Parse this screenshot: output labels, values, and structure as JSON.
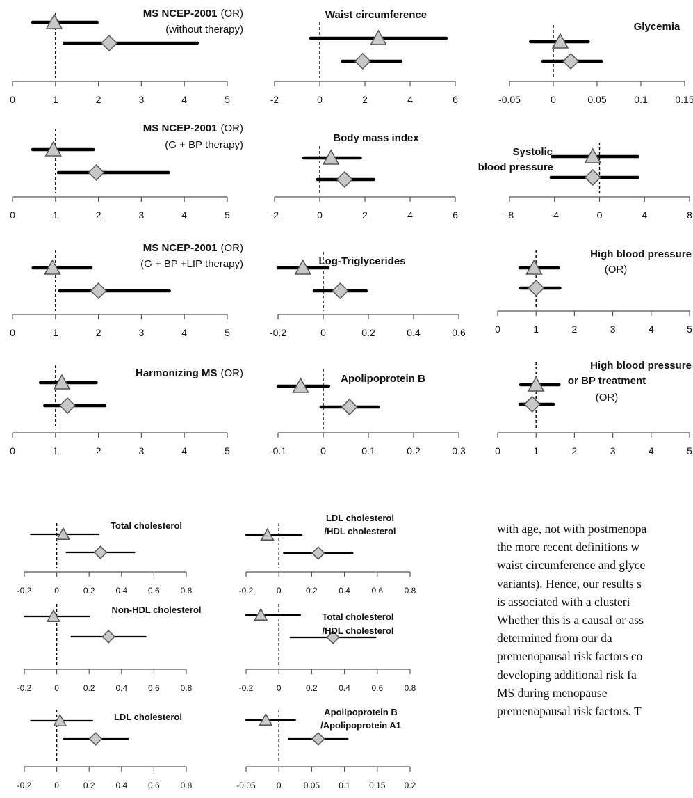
{
  "colors": {
    "axis": "#555555",
    "ci_line": "#000000",
    "marker_fill": "#c8c8c8",
    "marker_stroke": "#555555",
    "reference_line": "#000000"
  },
  "chart_data": [
    {
      "id": "ms-ncep-no-therapy",
      "type": "forest",
      "title_bold": "MS NCEP-2001",
      "title_normal": "(OR)",
      "subtitle": "(without therapy)",
      "ref": 1,
      "ticks": [
        0,
        1,
        2,
        3,
        4,
        5
      ],
      "tick_labels": [
        "0",
        "1",
        "2",
        "3",
        "4",
        "5"
      ],
      "xlim": [
        0,
        5
      ],
      "series": [
        {
          "marker": "triangle",
          "estimate": 0.97,
          "lower": 0.47,
          "upper": 1.97
        },
        {
          "marker": "diamond",
          "estimate": 2.25,
          "lower": 1.2,
          "upper": 4.3
        }
      ]
    },
    {
      "id": "waist-circumference",
      "type": "forest",
      "title_bold": "Waist circumference",
      "title_normal": "",
      "subtitle": "",
      "ref": 0,
      "ticks": [
        -2,
        0,
        2,
        4,
        6
      ],
      "tick_labels": [
        "-2",
        "0",
        "2",
        "4",
        "6"
      ],
      "xlim": [
        -2,
        6
      ],
      "series": [
        {
          "marker": "triangle",
          "estimate": 2.6,
          "lower": -0.4,
          "upper": 5.6
        },
        {
          "marker": "diamond",
          "estimate": 1.9,
          "lower": 1.0,
          "upper": 3.6
        }
      ]
    },
    {
      "id": "glycemia",
      "type": "forest",
      "title_bold": "Glycemia",
      "title_normal": "",
      "subtitle": "",
      "ref": 0,
      "ticks": [
        -0.05,
        0,
        0.05,
        0.1,
        0.15
      ],
      "tick_labels": [
        "-0.05",
        "0",
        "0.05",
        "0.1",
        "0.15"
      ],
      "xlim": [
        -0.05,
        0.15
      ],
      "series": [
        {
          "marker": "triangle",
          "estimate": 0.008,
          "lower": -0.026,
          "upper": 0.04
        },
        {
          "marker": "diamond",
          "estimate": 0.02,
          "lower": -0.012,
          "upper": 0.055
        }
      ]
    },
    {
      "id": "ms-ncep-g-bp",
      "type": "forest",
      "title_bold": "MS NCEP-2001",
      "title_normal": "(OR)",
      "subtitle": "(G + BP therapy)",
      "ref": 1,
      "ticks": [
        0,
        1,
        2,
        3,
        4,
        5
      ],
      "tick_labels": [
        "0",
        "1",
        "2",
        "3",
        "4",
        "5"
      ],
      "xlim": [
        0,
        5
      ],
      "series": [
        {
          "marker": "triangle",
          "estimate": 0.95,
          "lower": 0.47,
          "upper": 1.88
        },
        {
          "marker": "diamond",
          "estimate": 1.95,
          "lower": 1.07,
          "upper": 3.63
        }
      ]
    },
    {
      "id": "body-mass-index",
      "type": "forest",
      "title_bold": "Body mass index",
      "title_normal": "",
      "subtitle": "",
      "ref": 0,
      "ticks": [
        -2,
        0,
        2,
        4,
        6
      ],
      "tick_labels": [
        "-2",
        "0",
        "2",
        "4",
        "6"
      ],
      "xlim": [
        -2,
        6
      ],
      "series": [
        {
          "marker": "triangle",
          "estimate": 0.5,
          "lower": -0.7,
          "upper": 1.8
        },
        {
          "marker": "diamond",
          "estimate": 1.1,
          "lower": -0.1,
          "upper": 2.4
        }
      ]
    },
    {
      "id": "systolic-bp",
      "type": "forest",
      "title_bold": "Systolic",
      "title_bold_2": "blood pressure",
      "title_normal": "",
      "subtitle": "",
      "ref": 0,
      "ticks": [
        -8,
        -4,
        0,
        4,
        8
      ],
      "tick_labels": [
        "-8",
        "-4",
        "0",
        "4",
        "8"
      ],
      "xlim": [
        -8,
        8
      ],
      "series": [
        {
          "marker": "triangle",
          "estimate": -0.6,
          "lower": -4.2,
          "upper": 3.4
        },
        {
          "marker": "diamond",
          "estimate": -0.6,
          "lower": -4.3,
          "upper": 3.4
        }
      ]
    },
    {
      "id": "ms-ncep-g-bp-lip",
      "type": "forest",
      "title_bold": "MS NCEP-2001",
      "title_normal": "(OR)",
      "subtitle": "(G + BP +LIP therapy)",
      "ref": 1,
      "ticks": [
        0,
        1,
        2,
        3,
        4,
        5
      ],
      "tick_labels": [
        "0",
        "1",
        "2",
        "3",
        "4",
        "5"
      ],
      "xlim": [
        0,
        5
      ],
      "series": [
        {
          "marker": "triangle",
          "estimate": 0.93,
          "lower": 0.48,
          "upper": 1.83
        },
        {
          "marker": "diamond",
          "estimate": 2.0,
          "lower": 1.1,
          "upper": 3.65
        }
      ]
    },
    {
      "id": "log-triglycerides",
      "type": "forest",
      "title_bold": "Log-Triglycerides",
      "title_normal": "",
      "subtitle": "",
      "ref": 0,
      "ticks": [
        -0.2,
        0,
        0.2,
        0.4,
        0.6
      ],
      "tick_labels": [
        "-0.2",
        "0",
        "0.2",
        "0.4",
        "0.6"
      ],
      "xlim": [
        -0.2,
        0.6
      ],
      "series": [
        {
          "marker": "triangle",
          "estimate": -0.09,
          "lower": -0.2,
          "upper": 0.02
        },
        {
          "marker": "diamond",
          "estimate": 0.075,
          "lower": -0.04,
          "upper": 0.19
        }
      ]
    },
    {
      "id": "high-bp",
      "type": "forest",
      "title_bold": "High blood pressure",
      "title_normal": "",
      "subtitle": "(OR)",
      "ref": 1,
      "ticks": [
        0,
        1,
        2,
        3,
        4,
        5
      ],
      "tick_labels": [
        "0",
        "1",
        "2",
        "3",
        "4",
        "5"
      ],
      "xlim": [
        0,
        5
      ],
      "series": [
        {
          "marker": "triangle",
          "estimate": 0.95,
          "lower": 0.58,
          "upper": 1.58
        },
        {
          "marker": "diamond",
          "estimate": 1.0,
          "lower": 0.6,
          "upper": 1.62
        }
      ]
    },
    {
      "id": "harmonizing-ms",
      "type": "forest",
      "title_bold": "Harmonizing MS",
      "title_normal": "(OR)",
      "subtitle": "",
      "ref": 1,
      "ticks": [
        0,
        1,
        2,
        3,
        4,
        5
      ],
      "tick_labels": [
        "0",
        "1",
        "2",
        "3",
        "4",
        "5"
      ],
      "xlim": [
        0,
        5
      ],
      "series": [
        {
          "marker": "triangle",
          "estimate": 1.15,
          "lower": 0.65,
          "upper": 1.95
        },
        {
          "marker": "diamond",
          "estimate": 1.28,
          "lower": 0.75,
          "upper": 2.15
        }
      ]
    },
    {
      "id": "apolipoprotein-b",
      "type": "forest",
      "title_bold": "Apolipoprotein B",
      "title_normal": "",
      "subtitle": "",
      "ref": 0,
      "ticks": [
        -0.1,
        0,
        0.1,
        0.2,
        0.3
      ],
      "tick_labels": [
        "-0.1",
        "0",
        "0.1",
        "0.2",
        "0.3"
      ],
      "xlim": [
        -0.1,
        0.3
      ],
      "series": [
        {
          "marker": "triangle",
          "estimate": -0.05,
          "lower": -0.1,
          "upper": 0.012
        },
        {
          "marker": "diamond",
          "estimate": 0.058,
          "lower": -0.005,
          "upper": 0.122
        }
      ]
    },
    {
      "id": "high-bp-or-treatment",
      "type": "forest",
      "title_bold": "High blood pressure",
      "title_bold_2": "or BP treatment",
      "title_normal": "",
      "subtitle": "(OR)",
      "ref": 1,
      "ticks": [
        0,
        1,
        2,
        3,
        4,
        5
      ],
      "tick_labels": [
        "0",
        "1",
        "2",
        "3",
        "4",
        "5"
      ],
      "xlim": [
        0,
        5
      ],
      "series": [
        {
          "marker": "triangle",
          "estimate": 1.0,
          "lower": 0.6,
          "upper": 1.6
        },
        {
          "marker": "diamond",
          "estimate": 0.9,
          "lower": 0.58,
          "upper": 1.45
        }
      ]
    },
    {
      "id": "total-cholesterol",
      "type": "forest",
      "title_bold": "Total cholesterol",
      "title_normal": "",
      "subtitle": "",
      "ref": 0,
      "ticks": [
        -0.2,
        0,
        0.2,
        0.4,
        0.6,
        0.8
      ],
      "tick_labels": [
        "-0.2",
        "0",
        "0.2",
        "0.4",
        "0.6",
        "0.8"
      ],
      "xlim": [
        -0.2,
        0.8
      ],
      "series": [
        {
          "marker": "triangle",
          "estimate": 0.04,
          "lower": -0.16,
          "upper": 0.26
        },
        {
          "marker": "diamond",
          "estimate": 0.27,
          "lower": 0.06,
          "upper": 0.48
        }
      ]
    },
    {
      "id": "ldl-hdl",
      "type": "forest",
      "title_bold": "LDL cholesterol",
      "title_bold_2": "/HDL cholesterol",
      "title_normal": "",
      "subtitle": "",
      "ref": 0,
      "ticks": [
        -0.2,
        0,
        0.2,
        0.4,
        0.6,
        0.8
      ],
      "tick_labels": [
        "-0.2",
        "0",
        "0.2",
        "0.4",
        "0.6",
        "0.8"
      ],
      "xlim": [
        -0.2,
        0.8
      ],
      "series": [
        {
          "marker": "triangle",
          "estimate": -0.07,
          "lower": -0.2,
          "upper": 0.14
        },
        {
          "marker": "diamond",
          "estimate": 0.24,
          "lower": 0.03,
          "upper": 0.45
        }
      ]
    },
    {
      "id": "non-hdl",
      "type": "forest",
      "title_bold": "Non-HDL cholesterol",
      "title_normal": "",
      "subtitle": "",
      "ref": 0,
      "ticks": [
        -0.2,
        0,
        0.2,
        0.4,
        0.6,
        0.8
      ],
      "tick_labels": [
        "-0.2",
        "0",
        "0.2",
        "0.4",
        "0.6",
        "0.8"
      ],
      "xlim": [
        -0.2,
        0.8
      ],
      "series": [
        {
          "marker": "triangle",
          "estimate": -0.02,
          "lower": -0.2,
          "upper": 0.2
        },
        {
          "marker": "diamond",
          "estimate": 0.32,
          "lower": 0.09,
          "upper": 0.55
        }
      ]
    },
    {
      "id": "total-hdl",
      "type": "forest",
      "title_bold": "Total cholesterol",
      "title_bold_2": "/HDL cholesterol",
      "title_normal": "",
      "subtitle": "",
      "ref": 0,
      "ticks": [
        -0.2,
        0,
        0.2,
        0.4,
        0.6,
        0.8
      ],
      "tick_labels": [
        "-0.2",
        "0",
        "0.2",
        "0.4",
        "0.6",
        "0.8"
      ],
      "xlim": [
        -0.2,
        0.8
      ],
      "series": [
        {
          "marker": "triangle",
          "estimate": -0.11,
          "lower": -0.2,
          "upper": 0.13
        },
        {
          "marker": "diamond",
          "estimate": 0.33,
          "lower": 0.07,
          "upper": 0.59
        }
      ]
    },
    {
      "id": "ldl-cholesterol",
      "type": "forest",
      "title_bold": "LDL cholesterol",
      "title_normal": "",
      "subtitle": "",
      "ref": 0,
      "ticks": [
        -0.2,
        0,
        0.2,
        0.4,
        0.6,
        0.8
      ],
      "tick_labels": [
        "-0.2",
        "0",
        "0.2",
        "0.4",
        "0.6",
        "0.8"
      ],
      "xlim": [
        -0.2,
        0.8
      ],
      "series": [
        {
          "marker": "triangle",
          "estimate": 0.02,
          "lower": -0.16,
          "upper": 0.22
        },
        {
          "marker": "diamond",
          "estimate": 0.24,
          "lower": 0.04,
          "upper": 0.44
        }
      ]
    },
    {
      "id": "apob-apoa1",
      "type": "forest",
      "title_bold": "Apolipoprotein B",
      "title_bold_2": "/Apolipoprotein A1",
      "title_normal": "",
      "subtitle": "",
      "ref": 0,
      "ticks": [
        -0.05,
        0,
        0.05,
        0.1,
        0.15,
        0.2
      ],
      "tick_labels": [
        "-0.05",
        "0",
        "0.05",
        "0.1",
        "0.15",
        "0.2"
      ],
      "xlim": [
        -0.05,
        0.2
      ],
      "series": [
        {
          "marker": "triangle",
          "estimate": -0.02,
          "lower": -0.05,
          "upper": 0.025
        },
        {
          "marker": "diamond",
          "estimate": 0.06,
          "lower": 0.015,
          "upper": 0.105
        }
      ]
    }
  ],
  "prose": {
    "lines": [
      "with age, not with postmenopa",
      "the more recent definitions w",
      "waist circumference and glyce",
      "variants). Hence, our results s",
      "is associated with a clusteri",
      "Whether this is a causal or ass",
      "determined from our da",
      "premenopausal risk factors co",
      "developing additional risk fa",
      "MS during menopause",
      "premenopausal risk factors. T"
    ]
  }
}
